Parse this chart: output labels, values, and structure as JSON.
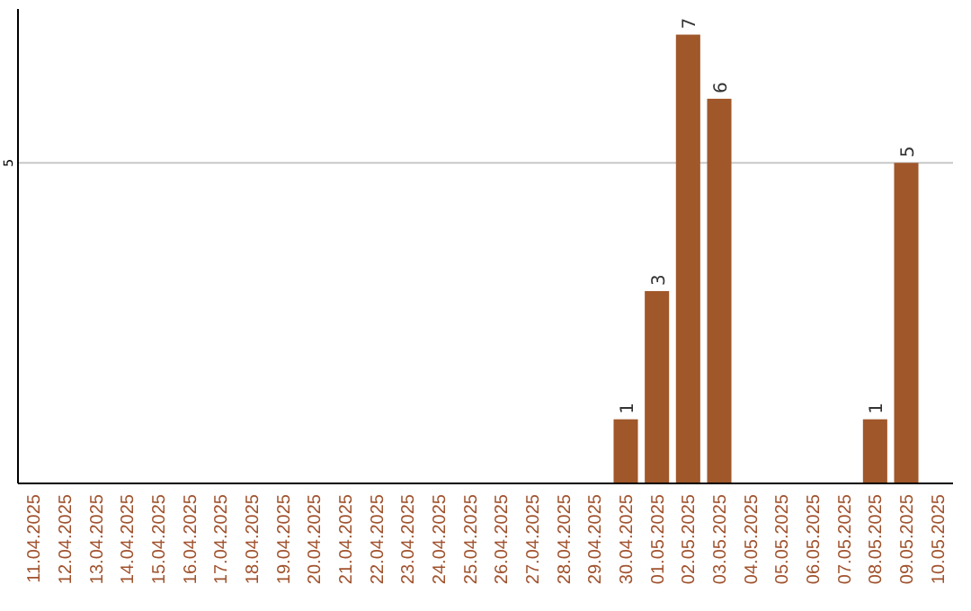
{
  "chart_data": {
    "type": "bar",
    "categories": [
      "11.04.2025",
      "12.04.2025",
      "13.04.2025",
      "14.04.2025",
      "15.04.2025",
      "16.04.2025",
      "17.04.2025",
      "18.04.2025",
      "19.04.2025",
      "20.04.2025",
      "21.04.2025",
      "22.04.2025",
      "23.04.2025",
      "24.04.2025",
      "25.04.2025",
      "26.04.2025",
      "27.04.2025",
      "28.04.2025",
      "29.04.2025",
      "30.04.2025",
      "01.05.2025",
      "02.05.2025",
      "03.05.2025",
      "04.05.2025",
      "05.05.2025",
      "06.05.2025",
      "07.05.2025",
      "08.05.2025",
      "09.05.2025",
      "10.05.2025"
    ],
    "values": [
      null,
      null,
      null,
      null,
      null,
      null,
      null,
      null,
      null,
      null,
      null,
      null,
      null,
      null,
      null,
      null,
      null,
      null,
      null,
      1,
      3,
      7,
      6,
      null,
      null,
      null,
      null,
      1,
      5,
      null
    ],
    "data_labels": true,
    "color": "#a0572a",
    "ylim": [
      0,
      7.4
    ],
    "ref_lines": [
      {
        "axis": "y",
        "value": 5,
        "label": "5",
        "color": "#c8c8c8"
      }
    ]
  }
}
